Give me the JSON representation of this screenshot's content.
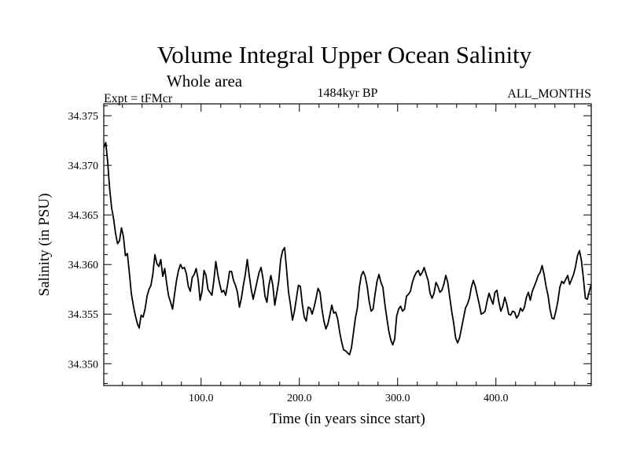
{
  "chart_data": {
    "type": "line",
    "title": "Volume Integral Upper Ocean Salinity",
    "subtitle": "Whole area",
    "experiment_label": "Expt = tFMcr",
    "period_label": "1484kyr BP",
    "months_label": "ALL_MONTHS",
    "xlabel": "Time (in years since start)",
    "ylabel": "Salinity (in PSU)",
    "xlim": [
      1,
      497
    ],
    "ylim": [
      34.3478,
      34.3762
    ],
    "xticks": [
      100,
      200,
      300,
      400
    ],
    "xtick_labels": [
      "100.0",
      "200.0",
      "300.0",
      "400.0"
    ],
    "yticks": [
      34.35,
      34.355,
      34.36,
      34.365,
      34.37,
      34.375
    ],
    "ytick_labels": [
      "34.350",
      "34.355",
      "34.360",
      "34.365",
      "34.370",
      "34.375"
    ],
    "series": [
      {
        "name": "Salinity",
        "color": "#000000",
        "x": [
          1,
          3,
          5,
          7,
          9,
          11,
          13,
          15,
          17,
          19,
          21,
          23,
          25,
          27,
          29,
          31,
          33,
          35,
          37,
          39,
          41,
          43,
          45,
          47,
          49,
          51,
          53,
          55,
          57,
          59,
          61,
          63,
          65,
          67,
          69,
          71,
          73,
          75,
          77,
          79,
          81,
          83,
          85,
          87,
          89,
          91,
          93,
          95,
          97,
          99,
          101,
          103,
          105,
          107,
          109,
          111,
          113,
          115,
          117,
          119,
          121,
          123,
          125,
          127,
          129,
          131,
          133,
          135,
          137,
          139,
          141,
          143,
          145,
          147,
          149,
          151,
          153,
          155,
          157,
          159,
          161,
          163,
          165,
          167,
          169,
          171,
          173,
          175,
          177,
          179,
          181,
          183,
          185,
          187,
          189,
          191,
          193,
          195,
          197,
          199,
          201,
          203,
          205,
          207,
          209,
          211,
          213,
          215,
          217,
          219,
          221,
          223,
          225,
          227,
          229,
          231,
          233,
          235,
          237,
          239,
          241,
          243,
          245,
          247,
          249,
          251,
          253,
          255,
          257,
          259,
          261,
          263,
          265,
          267,
          269,
          271,
          273,
          275,
          277,
          279,
          281,
          283,
          285,
          287,
          289,
          291,
          293,
          295,
          297,
          299,
          301,
          303,
          305,
          307,
          309,
          311,
          313,
          315,
          317,
          319,
          321,
          323,
          325,
          327,
          329,
          331,
          333,
          335,
          337,
          339,
          341,
          343,
          345,
          347,
          349,
          351,
          353,
          355,
          357,
          359,
          361,
          363,
          365,
          367,
          369,
          371,
          373,
          375,
          377,
          379,
          381,
          383,
          385,
          387,
          389,
          391,
          393,
          395,
          397,
          399,
          401,
          403,
          405,
          407,
          409,
          411,
          413,
          415,
          417,
          419,
          421,
          423,
          425,
          427,
          429,
          431,
          433,
          435,
          437,
          439,
          441,
          443,
          445,
          447,
          449,
          451,
          453,
          455,
          457,
          459,
          461,
          463,
          465,
          467,
          469,
          471,
          473,
          475,
          477,
          479,
          481,
          483,
          485,
          487,
          489,
          491,
          493,
          495,
          497
        ],
        "values": [
          34.3718,
          34.3723,
          34.3703,
          34.3676,
          34.3657,
          34.3646,
          34.3631,
          34.3621,
          34.3624,
          34.3637,
          34.3628,
          34.3609,
          34.3611,
          34.3592,
          34.3571,
          34.3559,
          34.3549,
          34.3541,
          34.3536,
          34.3549,
          34.3547,
          34.3555,
          34.3568,
          34.3575,
          34.3579,
          34.3591,
          34.361,
          34.3601,
          34.3598,
          34.3605,
          34.3588,
          34.3596,
          34.3581,
          34.3568,
          34.3562,
          34.3555,
          34.357,
          34.3584,
          34.3594,
          34.36,
          34.3596,
          34.3597,
          34.3591,
          34.3578,
          34.3573,
          34.3587,
          34.359,
          34.3596,
          34.3585,
          34.3564,
          34.3573,
          34.3594,
          34.3589,
          34.3575,
          34.3572,
          34.3569,
          34.3584,
          34.3603,
          34.359,
          34.358,
          34.3572,
          34.3574,
          34.3569,
          34.358,
          34.3593,
          34.3593,
          34.3584,
          34.3579,
          34.3572,
          34.3557,
          34.3566,
          34.3579,
          34.359,
          34.3605,
          34.3589,
          34.3575,
          34.3565,
          34.3574,
          34.3583,
          34.3592,
          34.3597,
          34.3586,
          34.3568,
          34.3562,
          34.3579,
          34.3589,
          34.3579,
          34.3559,
          34.3571,
          34.3583,
          34.3605,
          34.3614,
          34.3617,
          34.3595,
          34.3572,
          34.3559,
          34.3544,
          34.3553,
          34.3566,
          34.3579,
          34.3578,
          34.356,
          34.3547,
          34.3543,
          34.3557,
          34.3556,
          34.355,
          34.3557,
          34.3566,
          34.3576,
          34.3572,
          34.3555,
          34.3543,
          34.3535,
          34.354,
          34.3549,
          34.3559,
          34.3551,
          34.3552,
          34.3545,
          34.3532,
          34.3522,
          34.3514,
          34.3513,
          34.3511,
          34.3509,
          34.3516,
          34.3531,
          34.3546,
          34.3556,
          34.3577,
          34.3589,
          34.3593,
          34.3588,
          34.3578,
          34.3563,
          34.3553,
          34.3555,
          34.357,
          34.3583,
          34.359,
          34.3582,
          34.3577,
          34.356,
          34.3546,
          34.3533,
          34.3524,
          34.3519,
          34.3525,
          34.3548,
          34.3555,
          34.3558,
          34.3553,
          34.3555,
          34.3568,
          34.357,
          34.3573,
          34.3582,
          34.3588,
          34.3592,
          34.3594,
          34.3589,
          34.3592,
          34.3597,
          34.359,
          34.3584,
          34.3571,
          34.3566,
          34.3571,
          34.3582,
          34.3578,
          34.3572,
          34.3574,
          34.358,
          34.3589,
          34.3582,
          34.3567,
          34.3553,
          34.3541,
          34.3526,
          34.3521,
          34.3526,
          34.3536,
          34.3546,
          34.3556,
          34.356,
          34.3566,
          34.3577,
          34.3584,
          34.3578,
          34.3569,
          34.356,
          34.355,
          34.3551,
          34.3553,
          34.3563,
          34.3571,
          34.3565,
          34.356,
          34.3572,
          34.3574,
          34.3562,
          34.3553,
          34.3558,
          34.3567,
          34.356,
          34.355,
          34.3549,
          34.3553,
          34.3552,
          34.3546,
          34.3549,
          34.3556,
          34.3553,
          34.3557,
          34.3567,
          34.3572,
          34.3564,
          34.3573,
          34.3578,
          34.3583,
          34.3589,
          34.3592,
          34.3599,
          34.359,
          34.3578,
          34.3569,
          34.3555,
          34.3546,
          34.3545,
          34.3553,
          34.3563,
          34.3577,
          34.3583,
          34.3581,
          34.3585,
          34.3589,
          34.358,
          34.3585,
          34.359,
          34.3598,
          34.3609,
          34.3614,
          34.3604,
          34.3586,
          34.3566,
          34.3565,
          34.3573,
          34.358
        ]
      }
    ]
  }
}
